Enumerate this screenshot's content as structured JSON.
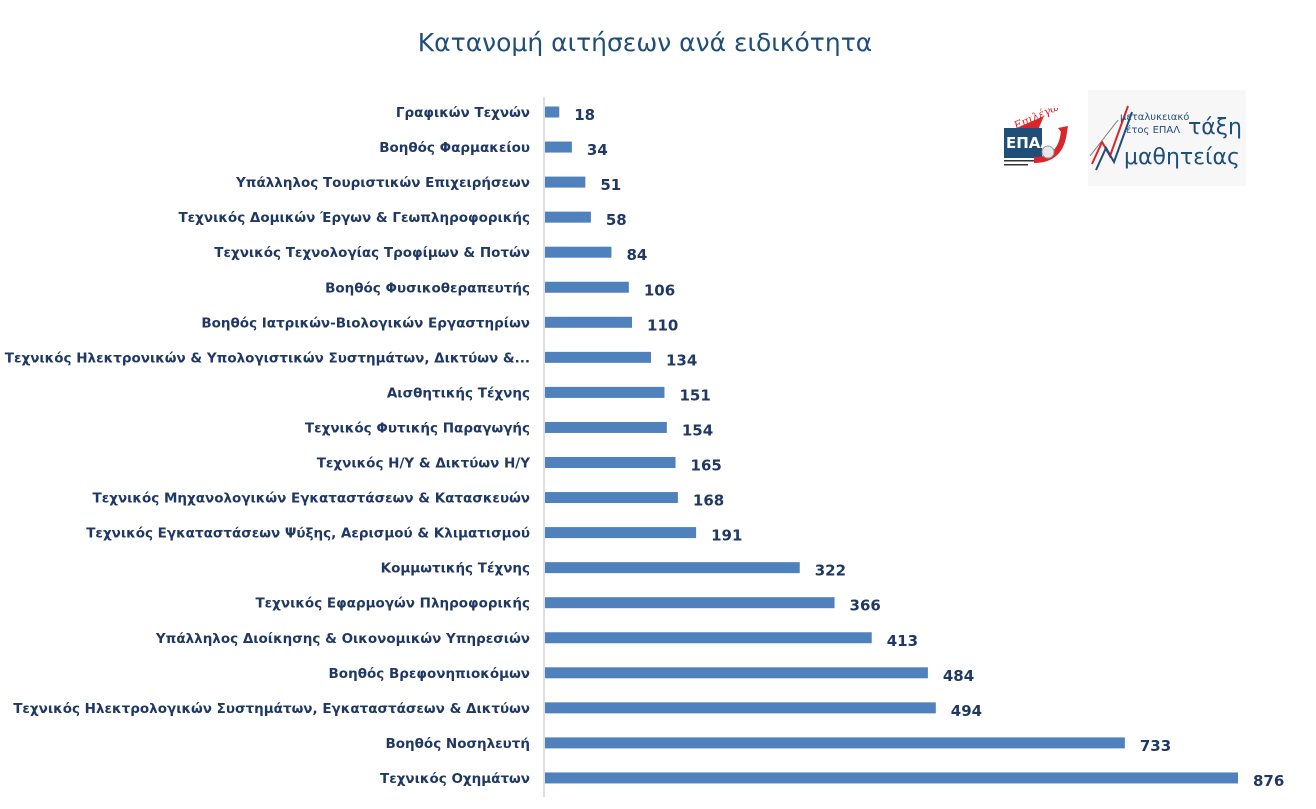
{
  "chart_data": {
    "type": "bar",
    "orientation": "horizontal",
    "title": "Κατανομή αιτήσεων ανά ειδικότητα",
    "categories": [
      "Γραφικών Τεχνών",
      "Βοηθός Φαρμακείου",
      "Υπάλληλος Τουριστικών Επιχειρήσεων",
      "Τεχνικός Δομικών Έργων & Γεωπληροφορικής",
      "Τεχνικός Τεχνολογίας Τροφίμων & Ποτών",
      "Βοηθός Φυσικοθεραπευτής",
      "Βοηθός Ιατρικών-Βιολογικών Εργαστηρίων",
      "Τεχνικός Ηλεκτρονικών & Υπολογιστικών Συστημάτων, Δικτύων &...",
      "Αισθητικής Τέχνης",
      "Τεχνικός Φυτικής Παραγωγής",
      "Τεχνικός Η/Υ & Δικτύων Η/Υ",
      "Τεχνικός Μηχανολογικών Εγκαταστάσεων & Κατασκευών",
      "Τεχνικός Εγκαταστάσεων Ψύξης, Αερισμού & Κλιματισμού",
      "Κομμωτικής Τέχνης",
      "Τεχνικός Εφαρμογών Πληροφορικής",
      "Υπάλληλος Διοίκησης & Οικονομικών Υπηρεσιών",
      "Βοηθός Βρεφονηπιοκόμων",
      "Τεχνικός Ηλεκτρολογικών Συστημάτων, Εγκαταστάσεων & Δικτύων",
      "Βοηθός Νοσηλευτή",
      "Τεχνικός Οχημάτων"
    ],
    "values": [
      18,
      34,
      51,
      58,
      84,
      106,
      110,
      134,
      151,
      154,
      165,
      168,
      191,
      322,
      366,
      413,
      484,
      494,
      733,
      876
    ],
    "xlim": [
      0,
      876
    ],
    "grid": false,
    "legend": "none",
    "data_labels": true,
    "colors": {
      "bar": "#4f81bd",
      "text": "#1f3864",
      "title": "#1f4e79"
    }
  },
  "logos": {
    "epal": {
      "script_text": "Επιλέγω",
      "main_text": "ΕΠΑΛ"
    },
    "mathiteia": {
      "line1": "μεταλυκειακό",
      "line2": "έτος ΕΠΑΛ",
      "line3": "τάξη",
      "line4": "μαθητείας"
    }
  }
}
